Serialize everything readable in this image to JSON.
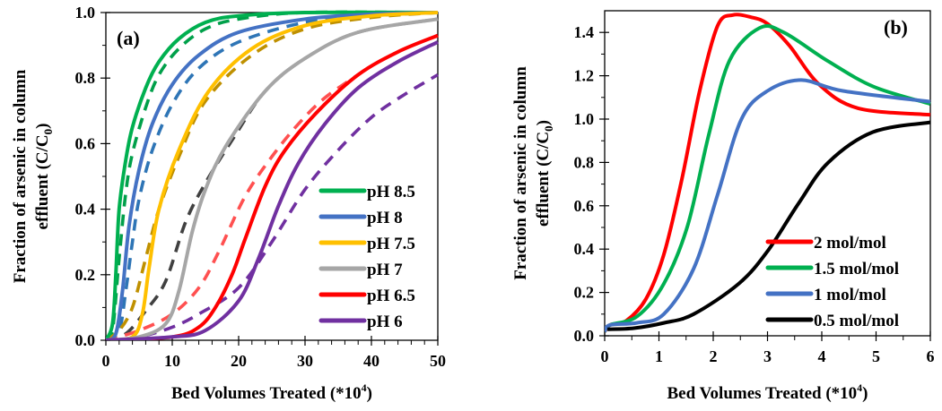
{
  "chart_data": [
    {
      "type": "line",
      "panel_label": "(a)",
      "xlabel": "Bed Volumes Treated (*10",
      "xlabel_sup": "4",
      "xlabel_end": ")",
      "ylabel_line1": "Fraction of arsenic in column",
      "ylabel_line2": "effluent (C/C",
      "ylabel_sub": "0",
      "ylabel_end": ")",
      "xlim": [
        0,
        50
      ],
      "ylim": [
        0,
        1.0
      ],
      "xticks": [
        0,
        10,
        20,
        30,
        40,
        50
      ],
      "xtick_labels": [
        "0",
        "10",
        "20",
        "30",
        "40",
        "50"
      ],
      "yticks": [
        0,
        0.2,
        0.4,
        0.6,
        0.8,
        1.0
      ],
      "ytick_labels": [
        "0.0",
        "0.2",
        "0.4",
        "0.6",
        "0.8",
        "1.0"
      ],
      "grid": false,
      "legend_position": "bottom-right",
      "series": [
        {
          "name": "pH 8.5",
          "color": "#00B050",
          "style": "solid",
          "legend": true,
          "points": [
            [
              0,
              0
            ],
            [
              1,
              0.05
            ],
            [
              1.5,
              0.2
            ],
            [
              2,
              0.4
            ],
            [
              3,
              0.55
            ],
            [
              4,
              0.65
            ],
            [
              6,
              0.77
            ],
            [
              8,
              0.85
            ],
            [
              11,
              0.92
            ],
            [
              15,
              0.97
            ],
            [
              20,
              0.99
            ],
            [
              30,
              1
            ],
            [
              50,
              1
            ]
          ]
        },
        {
          "name": "pH 8.5 model",
          "color": "#00A04A",
          "style": "dashed",
          "legend": false,
          "points": [
            [
              0,
              0
            ],
            [
              1,
              0.03
            ],
            [
              2,
              0.25
            ],
            [
              3,
              0.45
            ],
            [
              4,
              0.57
            ],
            [
              6,
              0.71
            ],
            [
              8,
              0.81
            ],
            [
              11,
              0.89
            ],
            [
              15,
              0.95
            ],
            [
              20,
              0.98
            ],
            [
              30,
              1
            ],
            [
              50,
              1
            ]
          ]
        },
        {
          "name": "pH 8",
          "color": "#4472C4",
          "style": "solid",
          "legend": true,
          "points": [
            [
              0,
              0
            ],
            [
              1.5,
              0.02
            ],
            [
              2.5,
              0.15
            ],
            [
              3.5,
              0.35
            ],
            [
              5,
              0.52
            ],
            [
              7,
              0.66
            ],
            [
              10,
              0.78
            ],
            [
              14,
              0.87
            ],
            [
              20,
              0.94
            ],
            [
              30,
              0.98
            ],
            [
              40,
              0.995
            ],
            [
              50,
              1
            ]
          ]
        },
        {
          "name": "pH 8 model",
          "color": "#2E75B6",
          "style": "dashed",
          "legend": false,
          "points": [
            [
              0,
              0
            ],
            [
              2,
              0.03
            ],
            [
              3,
              0.15
            ],
            [
              4,
              0.3
            ],
            [
              5,
              0.43
            ],
            [
              7,
              0.58
            ],
            [
              10,
              0.72
            ],
            [
              14,
              0.83
            ],
            [
              20,
              0.91
            ],
            [
              30,
              0.97
            ],
            [
              40,
              0.99
            ],
            [
              50,
              1
            ]
          ]
        },
        {
          "name": "pH 7.5",
          "color": "#FFC000",
          "style": "solid",
          "legend": true,
          "points": [
            [
              0,
              0
            ],
            [
              4,
              0.01
            ],
            [
              5.5,
              0.08
            ],
            [
              6.5,
              0.22
            ],
            [
              8,
              0.4
            ],
            [
              11,
              0.58
            ],
            [
              15.5,
              0.76
            ],
            [
              22,
              0.89
            ],
            [
              30,
              0.96
            ],
            [
              40,
              0.99
            ],
            [
              50,
              1
            ]
          ]
        },
        {
          "name": "pH 7.5 model",
          "color": "#BF9000",
          "style": "dashed",
          "legend": false,
          "points": [
            [
              0,
              0
            ],
            [
              2,
              0.03
            ],
            [
              4,
              0.1
            ],
            [
              6,
              0.25
            ],
            [
              8,
              0.4
            ],
            [
              11,
              0.56
            ],
            [
              15,
              0.73
            ],
            [
              22,
              0.87
            ],
            [
              30,
              0.95
            ],
            [
              40,
              0.985
            ],
            [
              50,
              1
            ]
          ]
        },
        {
          "name": "pH 7",
          "color": "#A6A6A6",
          "style": "solid",
          "legend": true,
          "points": [
            [
              0,
              0
            ],
            [
              5,
              0.01
            ],
            [
              9,
              0.05
            ],
            [
              11,
              0.15
            ],
            [
              13,
              0.33
            ],
            [
              15,
              0.46
            ],
            [
              18,
              0.59
            ],
            [
              24,
              0.76
            ],
            [
              30,
              0.86
            ],
            [
              38,
              0.94
            ],
            [
              50,
              0.98
            ]
          ]
        },
        {
          "name": "pH 7 model",
          "color": "#404040",
          "style": "dashed",
          "legend": false,
          "points": [
            [
              0,
              0
            ],
            [
              3,
              0.02
            ],
            [
              6,
              0.09
            ],
            [
              9,
              0.18
            ],
            [
              12,
              0.36
            ],
            [
              15,
              0.48
            ],
            [
              19,
              0.61
            ],
            [
              24,
              0.76
            ],
            [
              30,
              0.86
            ],
            [
              38,
              0.94
            ],
            [
              50,
              0.98
            ]
          ]
        },
        {
          "name": "pH 6.5",
          "color": "#FF0000",
          "style": "solid",
          "legend": true,
          "points": [
            [
              0,
              0
            ],
            [
              10,
              0.01
            ],
            [
              14,
              0.04
            ],
            [
              16.5,
              0.1
            ],
            [
              19,
              0.2
            ],
            [
              21,
              0.31
            ],
            [
              24,
              0.47
            ],
            [
              27,
              0.58
            ],
            [
              32,
              0.7
            ],
            [
              38,
              0.81
            ],
            [
              44,
              0.88
            ],
            [
              50,
              0.93
            ]
          ]
        },
        {
          "name": "pH 6.5 model",
          "color": "#FF5050",
          "style": "dashed",
          "legend": false,
          "points": [
            [
              0,
              0
            ],
            [
              5,
              0.03
            ],
            [
              10,
              0.08
            ],
            [
              14,
              0.16
            ],
            [
              17,
              0.27
            ],
            [
              21,
              0.44
            ],
            [
              25,
              0.56
            ],
            [
              29,
              0.66
            ],
            [
              33,
              0.74
            ],
            [
              38,
              0.81
            ]
          ]
        },
        {
          "name": "pH 6",
          "color": "#7030A0",
          "style": "solid",
          "legend": true,
          "points": [
            [
              0,
              0
            ],
            [
              10,
              0.01
            ],
            [
              15,
              0.03
            ],
            [
              20,
              0.12
            ],
            [
              23,
              0.25
            ],
            [
              26,
              0.41
            ],
            [
              29,
              0.54
            ],
            [
              33,
              0.66
            ],
            [
              38,
              0.77
            ],
            [
              44,
              0.85
            ],
            [
              50,
              0.91
            ]
          ]
        },
        {
          "name": "pH 6 model",
          "color": "#7030A0",
          "style": "dashed",
          "legend": false,
          "points": [
            [
              0,
              0
            ],
            [
              5,
              0.01
            ],
            [
              10,
              0.04
            ],
            [
              14,
              0.08
            ],
            [
              20,
              0.16
            ],
            [
              25,
              0.3
            ],
            [
              30,
              0.46
            ],
            [
              35,
              0.58
            ],
            [
              40,
              0.68
            ],
            [
              45,
              0.75
            ],
            [
              50,
              0.81
            ]
          ]
        }
      ]
    },
    {
      "type": "line",
      "panel_label": "(b)",
      "xlabel": "Bed Volumes Treated (*10",
      "xlabel_sup": "4",
      "xlabel_end": ")",
      "ylabel_line1": "Fraction of arsenic in column",
      "ylabel_line2": "effluent (C/C",
      "ylabel_sub": "0",
      "ylabel_end": ")",
      "xlim": [
        0,
        6
      ],
      "ylim": [
        0,
        1.5
      ],
      "xticks": [
        0,
        1,
        2,
        3,
        4,
        5,
        6
      ],
      "xtick_labels": [
        "0",
        "1",
        "2",
        "3",
        "4",
        "5",
        "6"
      ],
      "yticks": [
        0,
        0.2,
        0.4,
        0.6,
        0.8,
        1.0,
        1.2,
        1.4
      ],
      "ytick_labels": [
        "0.0",
        "0.2",
        "0.4",
        "0.6",
        "0.8",
        "1.0",
        "1.2",
        "1.4"
      ],
      "grid": false,
      "legend_position": "bottom-right",
      "series": [
        {
          "name": "2 mol/mol",
          "color": "#FF0000",
          "style": "solid",
          "legend": true,
          "points": [
            [
              0,
              0.02
            ],
            [
              0.1,
              0.05
            ],
            [
              0.4,
              0.07
            ],
            [
              0.76,
              0.17
            ],
            [
              1.09,
              0.375
            ],
            [
              1.42,
              0.72
            ],
            [
              1.75,
              1.13
            ],
            [
              2.08,
              1.43
            ],
            [
              2.36,
              1.48
            ],
            [
              2.7,
              1.47
            ],
            [
              3.0,
              1.44
            ],
            [
              3.4,
              1.34
            ],
            [
              3.95,
              1.16
            ],
            [
              4.67,
              1.05
            ],
            [
              6,
              1.02
            ]
          ]
        },
        {
          "name": "1.5 mol/mol",
          "color": "#00B050",
          "style": "solid",
          "legend": true,
          "points": [
            [
              0,
              0.02
            ],
            [
              0.1,
              0.05
            ],
            [
              0.6,
              0.09
            ],
            [
              1.09,
              0.24
            ],
            [
              1.53,
              0.51
            ],
            [
              1.92,
              0.93
            ],
            [
              2.3,
              1.27
            ],
            [
              2.85,
              1.42
            ],
            [
              3.3,
              1.4
            ],
            [
              4.1,
              1.27
            ],
            [
              4.95,
              1.15
            ],
            [
              6,
              1.07
            ]
          ]
        },
        {
          "name": "1 mol/mol",
          "color": "#4472C4",
          "style": "solid",
          "legend": true,
          "points": [
            [
              0,
              0.02
            ],
            [
              0.1,
              0.05
            ],
            [
              0.6,
              0.06
            ],
            [
              1.09,
              0.1
            ],
            [
              1.64,
              0.31
            ],
            [
              2.08,
              0.65
            ],
            [
              2.52,
              1.0
            ],
            [
              3.0,
              1.13
            ],
            [
              3.62,
              1.18
            ],
            [
              4.39,
              1.13
            ],
            [
              6,
              1.08
            ]
          ]
        },
        {
          "name": "0.5 mol/mol",
          "color": "#000000",
          "style": "solid",
          "legend": true,
          "points": [
            [
              0.05,
              0.03
            ],
            [
              0.54,
              0.035
            ],
            [
              1.1,
              0.06
            ],
            [
              1.64,
              0.1
            ],
            [
              2.47,
              0.24
            ],
            [
              3.0,
              0.39
            ],
            [
              3.57,
              0.61
            ],
            [
              4.12,
              0.8
            ],
            [
              4.94,
              0.94
            ],
            [
              6,
              0.985
            ]
          ]
        }
      ]
    }
  ]
}
